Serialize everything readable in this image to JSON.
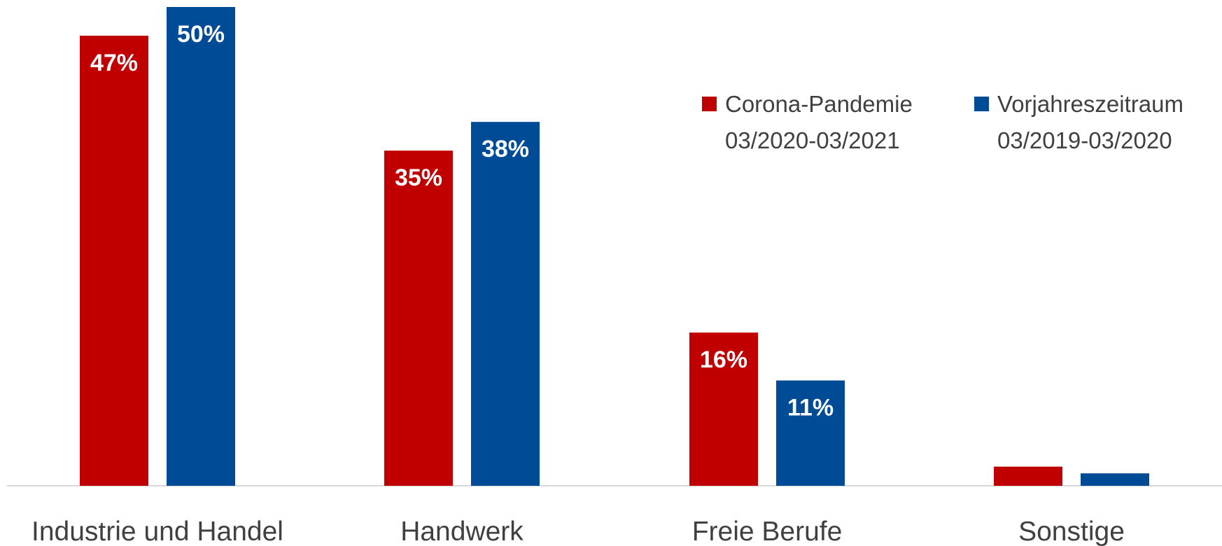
{
  "chart_data": {
    "type": "bar",
    "categories": [
      "Industrie und Handel",
      "Handwerk",
      "Freie Berufe",
      "Sonstige"
    ],
    "series": [
      {
        "name": "Corona-Pandemie 03/2020-03/2021",
        "legend_lines": [
          "Corona-Pandemie",
          "03/2020-03/2021"
        ],
        "color": "#C00000",
        "values": [
          47,
          35,
          16,
          2
        ],
        "labels": [
          "47%",
          "35%",
          "16%",
          ""
        ]
      },
      {
        "name": "Vorjahreszeitraum 03/2019-03/2020",
        "legend_lines": [
          "Vorjahreszeitraum",
          "03/2019-03/2020"
        ],
        "color": "#004B96",
        "values": [
          50,
          38,
          11,
          1.3
        ],
        "labels": [
          "50%",
          "38%",
          "11%",
          ""
        ]
      }
    ],
    "ylim": [
      0,
      50
    ],
    "value_suffix": "%",
    "grid": false,
    "legend_position": "top-right",
    "axis_color": "#D9D9D9",
    "text_color": "#404040"
  }
}
